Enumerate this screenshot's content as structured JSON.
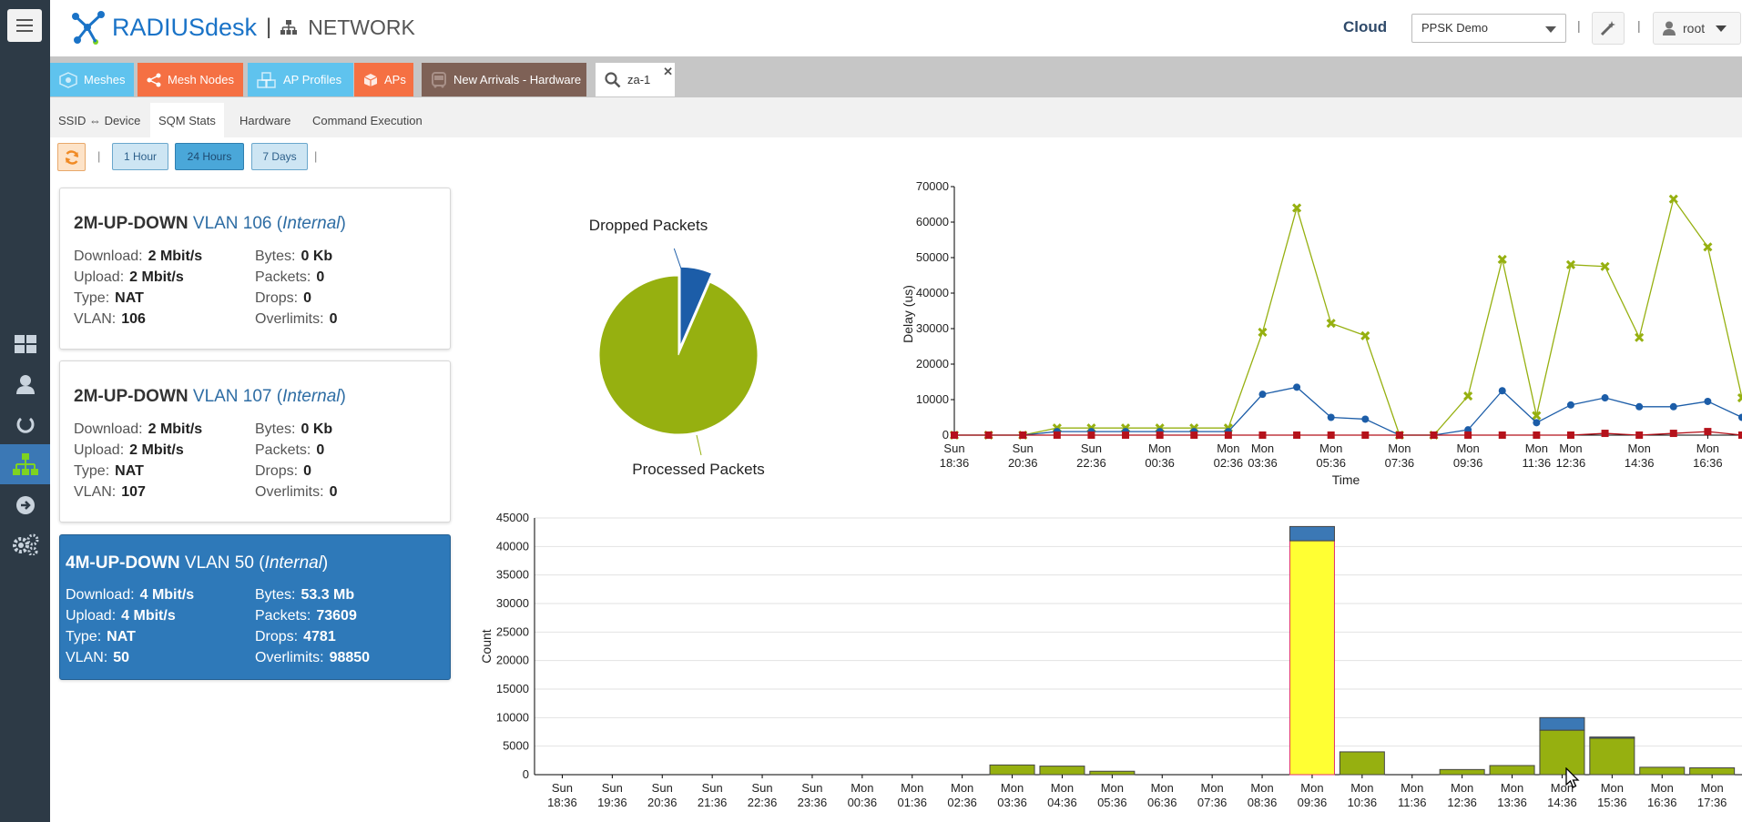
{
  "header": {
    "brand": "RADIUSdesk",
    "section": "NETWORK",
    "cloud_label": "Cloud",
    "realm_value": "PPSK Demo",
    "user": "root"
  },
  "top_tabs": [
    {
      "label": "Meshes",
      "color": "#5fc3ee",
      "icon": "meshes-icon"
    },
    {
      "label": "Mesh Nodes",
      "color": "#f57043",
      "icon": "share-nodes-icon"
    },
    {
      "label": "AP Profiles",
      "color": "#5fc3ee",
      "icon": "cubes-icon"
    },
    {
      "label": "APs",
      "color": "#f57043",
      "icon": "cube-icon"
    },
    {
      "label": "New Arrivals - Hardware",
      "color": "#7e6156",
      "icon": "bus-icon"
    },
    {
      "label": "za-1",
      "color": "#ffffff",
      "icon": "search-icon"
    }
  ],
  "sub_tabs": [
    {
      "label": "SSID ⇔ Device"
    },
    {
      "label": "SQM Stats"
    },
    {
      "label": "Hardware"
    },
    {
      "label": "Command Execution"
    }
  ],
  "toolbar": {
    "hour_1": "1 Hour",
    "hours_24": "24 Hours",
    "days_7": "7 Days"
  },
  "cards": [
    {
      "name": "2M-UP-DOWN",
      "vlan_label": "VLAN 106",
      "scope": "Internal",
      "download": "2 Mbit/s",
      "upload": "2 Mbit/s",
      "type": "NAT",
      "vlan": "106",
      "bytes": "0 Kb",
      "packets": "0",
      "drops": "0",
      "overlimits": "0"
    },
    {
      "name": "2M-UP-DOWN",
      "vlan_label": "VLAN 107",
      "scope": "Internal",
      "download": "2 Mbit/s",
      "upload": "2 Mbit/s",
      "type": "NAT",
      "vlan": "107",
      "bytes": "0 Kb",
      "packets": "0",
      "drops": "0",
      "overlimits": "0"
    },
    {
      "name": "4M-UP-DOWN",
      "vlan_label": "VLAN 50",
      "scope": "Internal",
      "download": "4 Mbit/s",
      "upload": "4 Mbit/s",
      "type": "NAT",
      "vlan": "50",
      "bytes": "53.3 Mb",
      "packets": "73609",
      "drops": "4781",
      "overlimits": "98850"
    }
  ],
  "labels": {
    "download": "Download:",
    "upload": "Upload:",
    "type": "Type:",
    "vlan": "VLAN:",
    "bytes": "Bytes:",
    "packets": "Packets:",
    "drops": "Drops:",
    "overlimits": "Overlimits:"
  },
  "chart_data": [
    {
      "type": "pie",
      "labels": [
        "Dropped Packets",
        "Processed Packets"
      ],
      "values": [
        4781,
        68828
      ],
      "colors": [
        "#1c5da8",
        "#96b010"
      ]
    },
    {
      "type": "line",
      "xlabel": "Time",
      "ylabel": "Delay (us)",
      "ylim": [
        0,
        70000
      ],
      "yticks": [
        0,
        10000,
        20000,
        30000,
        40000,
        50000,
        60000,
        70000
      ],
      "xticks": [
        [
          "Sun",
          "18:36"
        ],
        [
          "Sun",
          "20:36"
        ],
        [
          "Sun",
          "22:36"
        ],
        [
          "Mon",
          "00:36"
        ],
        [
          "Mon",
          "02:36"
        ],
        [
          "Mon",
          "03:36"
        ],
        [
          "Mon",
          "05:36"
        ],
        [
          "Mon",
          "07:36"
        ],
        [
          "Mon",
          "09:36"
        ],
        [
          "Mon",
          "11:36"
        ],
        [
          "Mon",
          "12:36"
        ],
        [
          "Mon",
          "14:36"
        ],
        [
          "Mon",
          "16:36"
        ]
      ],
      "xtick_hours": [
        0,
        2,
        4,
        6,
        8,
        9,
        11,
        13,
        15,
        17,
        18,
        20,
        22
      ],
      "x_hours": [
        0,
        1,
        2,
        3,
        4,
        5,
        6,
        7,
        8,
        9,
        10,
        11,
        12,
        13,
        14,
        15,
        16,
        17,
        18,
        19,
        20,
        21,
        22,
        23
      ],
      "series": [
        {
          "color": "#96b010",
          "marker": "x",
          "values": [
            0,
            0,
            0,
            2000,
            2000,
            2000,
            2000,
            2000,
            2000,
            29000,
            64000,
            31500,
            28000,
            0,
            0,
            11000,
            49500,
            5500,
            48000,
            47500,
            27500,
            66500,
            53000,
            10500
          ]
        },
        {
          "color": "#1c5da8",
          "marker": "circle",
          "values": [
            0,
            0,
            0,
            1000,
            1000,
            1000,
            1000,
            1000,
            1000,
            11500,
            13500,
            5000,
            4500,
            0,
            0,
            1500,
            12500,
            3500,
            8500,
            10500,
            8000,
            8000,
            9500,
            5000
          ]
        },
        {
          "color": "#b5121b",
          "marker": "square",
          "values": [
            0,
            0,
            0,
            0,
            0,
            0,
            0,
            0,
            0,
            0,
            0,
            0,
            0,
            0,
            0,
            0,
            0,
            0,
            0,
            500,
            0,
            500,
            1000,
            0
          ]
        }
      ]
    },
    {
      "type": "bar",
      "ylabel": "Count",
      "ylim": [
        0,
        45000
      ],
      "yticks": [
        0,
        5000,
        10000,
        15000,
        20000,
        25000,
        30000,
        35000,
        40000,
        45000
      ],
      "categories": [
        [
          "Sun",
          "18:36"
        ],
        [
          "Sun",
          "19:36"
        ],
        [
          "Sun",
          "20:36"
        ],
        [
          "Sun",
          "21:36"
        ],
        [
          "Sun",
          "22:36"
        ],
        [
          "Sun",
          "23:36"
        ],
        [
          "Mon",
          "00:36"
        ],
        [
          "Mon",
          "01:36"
        ],
        [
          "Mon",
          "02:36"
        ],
        [
          "Mon",
          "03:36"
        ],
        [
          "Mon",
          "04:36"
        ],
        [
          "Mon",
          "05:36"
        ],
        [
          "Mon",
          "06:36"
        ],
        [
          "Mon",
          "07:36"
        ],
        [
          "Mon",
          "08:36"
        ],
        [
          "Mon",
          "09:36"
        ],
        [
          "Mon",
          "10:36"
        ],
        [
          "Mon",
          "11:36"
        ],
        [
          "Mon",
          "12:36"
        ],
        [
          "Mon",
          "13:36"
        ],
        [
          "Mon",
          "14:36"
        ],
        [
          "Mon",
          "15:36"
        ],
        [
          "Mon",
          "16:36"
        ],
        [
          "Mon",
          "17:36"
        ]
      ],
      "series": [
        {
          "color": "#96b010",
          "values": [
            0,
            0,
            0,
            0,
            0,
            0,
            0,
            0,
            0,
            1700,
            1500,
            600,
            0,
            0,
            0,
            41000,
            4000,
            0,
            900,
            1600,
            7800,
            6400,
            1300,
            1200
          ]
        },
        {
          "color": "#3b78b5",
          "values": [
            0,
            0,
            0,
            0,
            0,
            0,
            0,
            0,
            0,
            0,
            0,
            0,
            0,
            0,
            0,
            2500,
            0,
            0,
            0,
            0,
            2200,
            200,
            0,
            0
          ]
        }
      ],
      "highlight_index": 15,
      "highlight_color": "#ffff33"
    }
  ]
}
